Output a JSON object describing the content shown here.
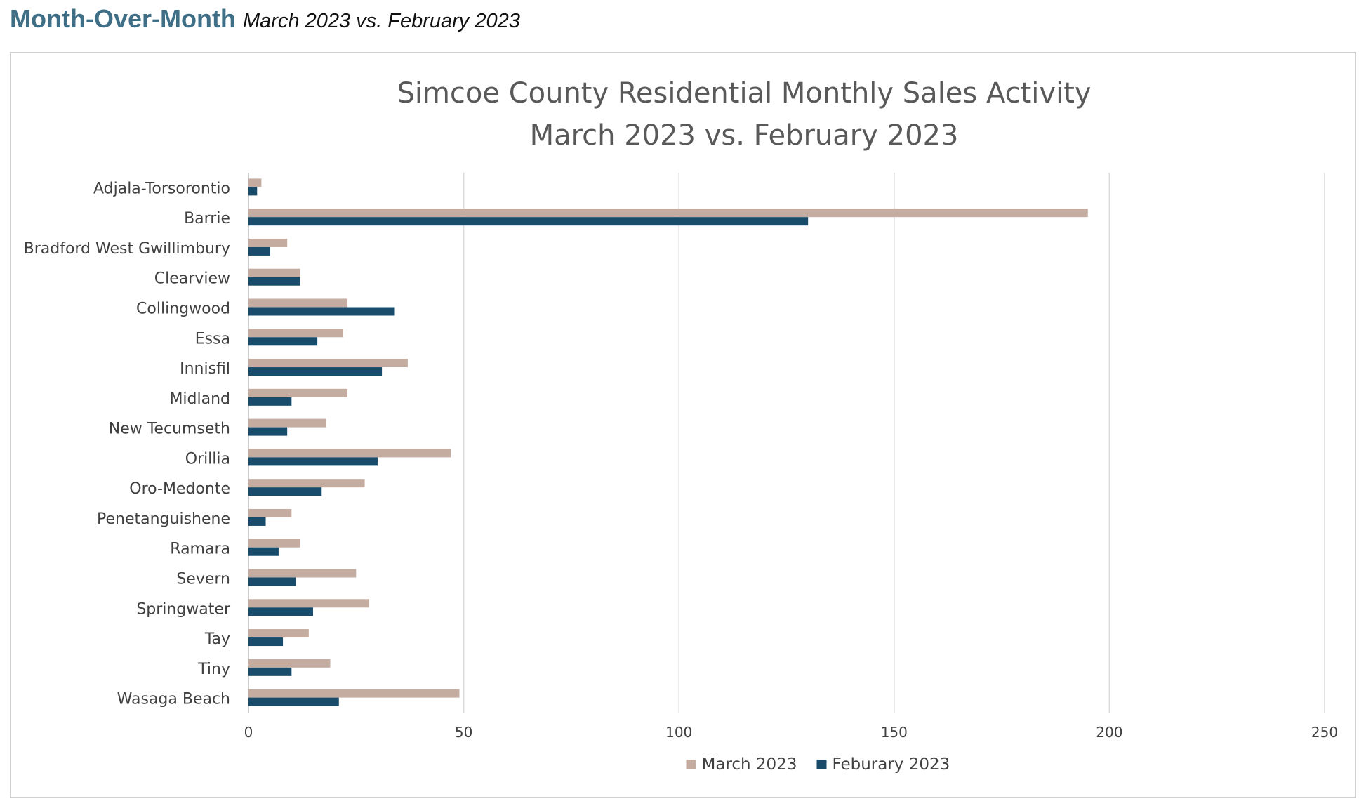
{
  "header": {
    "title": "Month-Over-Month",
    "subtitle": "March 2023 vs. February 2023"
  },
  "chart_data": {
    "type": "bar",
    "orientation": "horizontal",
    "title_lines": [
      "Simcoe County Residential Monthly Sales Activity",
      "March 2023 vs. February 2023"
    ],
    "categories": [
      "Adjala-Torsorontio",
      "Barrie",
      "Bradford West Gwillimbury",
      "Clearview",
      "Collingwood",
      "Essa",
      "Innisfil",
      "Midland",
      "New Tecumseth",
      "Orillia",
      "Oro-Medonte",
      "Penetanguishene",
      "Ramara",
      "Severn",
      "Springwater",
      "Tay",
      "Tiny",
      "Wasaga Beach"
    ],
    "series": [
      {
        "name": "March 2023",
        "color": "#c4ada0",
        "values": [
          3,
          195,
          9,
          12,
          23,
          22,
          37,
          23,
          18,
          47,
          27,
          10,
          12,
          25,
          28,
          14,
          19,
          49
        ]
      },
      {
        "name": "Feburary 2023",
        "color": "#194c6b",
        "values": [
          2,
          130,
          5,
          12,
          34,
          16,
          31,
          10,
          9,
          30,
          17,
          4,
          7,
          11,
          15,
          8,
          10,
          21
        ]
      }
    ],
    "xlim": [
      0,
      250
    ],
    "xticks": [
      "0",
      "50",
      "100",
      "150",
      "200",
      "250"
    ],
    "grid": "vertical",
    "legend_position": "bottom"
  }
}
